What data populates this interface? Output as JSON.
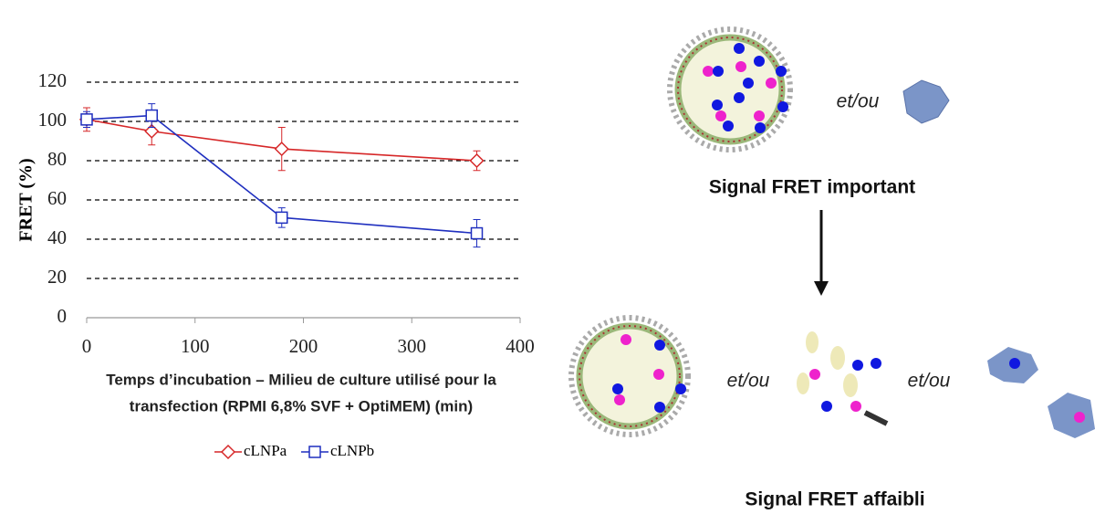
{
  "chart_data": {
    "type": "line",
    "y_label": "FRET (%)",
    "x_label": [
      "Temps d’incubation – Milieu de culture utilisé pour la",
      "transfection (RPMI 6,8% SVF + OptiMEM) (min)"
    ],
    "x": [
      0,
      60,
      180,
      360
    ],
    "series": [
      {
        "name": "cLNPa",
        "color": "#d62728",
        "marker": "diamond",
        "values": [
          101,
          95,
          86,
          80
        ],
        "errors": [
          6,
          7,
          11,
          5
        ]
      },
      {
        "name": "cLNPb",
        "color": "#1f2fbf",
        "marker": "square",
        "values": [
          101,
          103,
          51,
          43
        ],
        "errors": [
          4,
          6,
          5,
          7
        ]
      }
    ],
    "xlim": [
      0,
      400
    ],
    "xticks": [
      0,
      100,
      200,
      300,
      400
    ],
    "ylim": [
      0,
      120
    ],
    "yticks": [
      0,
      20,
      40,
      60,
      80,
      100,
      120
    ],
    "grid": true,
    "legend": "bottom"
  },
  "diagram": {
    "connector_top": "et/ou",
    "signal_high": "Signal FRET important",
    "connector_left": "et/ou",
    "connector_right": "et/ou",
    "signal_low": "Signal FRET affaibli"
  }
}
